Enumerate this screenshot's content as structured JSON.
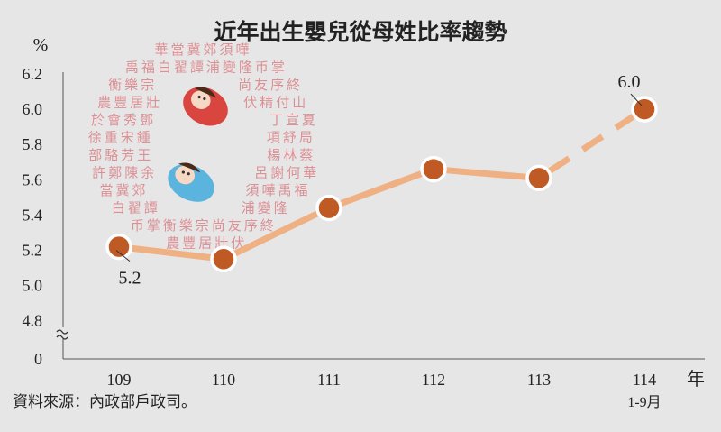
{
  "chart_data": {
    "type": "line",
    "title": "近年出生嬰兒從母姓比率趨勢",
    "ylabel": "%",
    "xlabel": "年",
    "categories": [
      "109",
      "110",
      "111",
      "112",
      "113",
      "114"
    ],
    "category_sublabels": [
      "",
      "",
      "",
      "",
      "",
      "1-9月"
    ],
    "values": [
      5.22,
      5.15,
      5.44,
      5.66,
      5.61,
      6.0
    ],
    "projected_from_index": 4,
    "yticks": [
      "6.2",
      "6.0",
      "5.8",
      "5.6",
      "5.4",
      "5.2",
      "5.0",
      "4.8",
      "0"
    ],
    "ylim": [
      4.8,
      6.2
    ],
    "axis_break": true,
    "grid": false,
    "annotations": [
      {
        "index": 0,
        "text": "5.2",
        "position": "below"
      },
      {
        "index": 5,
        "text": "6.0",
        "position": "above"
      }
    ],
    "line_color": "#efb183",
    "marker_color": "#bf5a24",
    "marker_edge_color": "#ffffff"
  },
  "source": "資料來源：內政部戶政司。",
  "decoration": {
    "description_icon": "baby-illustration-icon",
    "chars": [
      "華",
      "當",
      "冀",
      "郊",
      "須",
      "嘩",
      "禹",
      "福",
      "白",
      "翟",
      "譚",
      "浦",
      "變",
      "隆",
      "币",
      "掌",
      "衡",
      "樂",
      "宗",
      "尚",
      "友",
      "序",
      "終",
      "農",
      "豐",
      "居",
      "壯",
      "伏",
      "精",
      "付",
      "山",
      "於",
      "會",
      "秀",
      "鄧",
      "丁",
      "宣",
      "夏",
      "徐",
      "重",
      "宋",
      "鍾",
      "項",
      "舒",
      "局",
      "部",
      "駱",
      "芳",
      "王",
      "楊",
      "林",
      "蔡",
      "許",
      "鄭",
      "陳",
      "余",
      "呂",
      "謝",
      "何"
    ]
  }
}
